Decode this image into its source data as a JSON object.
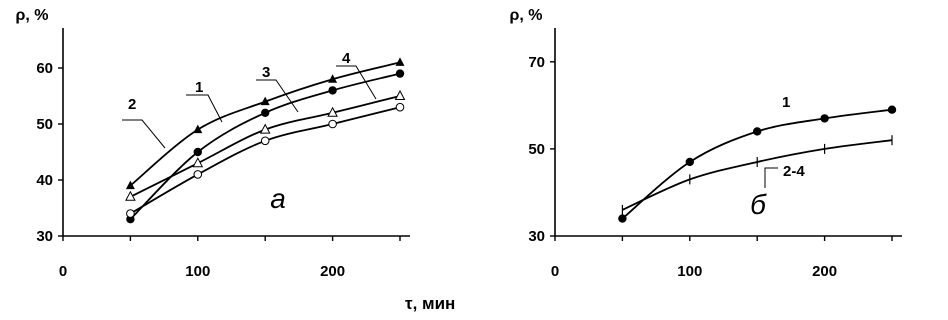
{
  "x_axis_label": "τ, мин",
  "chart_data": [
    {
      "type": "line",
      "panel_label": "а",
      "ylabel": "ρ, %",
      "xlabel": "τ, мин",
      "xlim": [
        0,
        250
      ],
      "ylim": [
        30,
        65
      ],
      "xticks": [
        0,
        100,
        200
      ],
      "yticks": [
        30,
        40,
        50,
        60
      ],
      "grid": false,
      "series": [
        {
          "name": "1",
          "marker": "filled-circle",
          "x": [
            50,
            100,
            150,
            200,
            250
          ],
          "y": [
            33,
            45,
            52,
            56,
            59
          ]
        },
        {
          "name": "2",
          "marker": "filled-triangle",
          "x": [
            50,
            100,
            150,
            200,
            250
          ],
          "y": [
            39,
            49,
            54,
            58,
            61
          ]
        },
        {
          "name": "3",
          "marker": "open-circle",
          "x": [
            50,
            100,
            150,
            200,
            250
          ],
          "y": [
            34,
            41,
            47,
            50,
            53
          ]
        },
        {
          "name": "4",
          "marker": "open-triangle",
          "x": [
            50,
            100,
            150,
            200,
            250
          ],
          "y": [
            37,
            43,
            49,
            52,
            55
          ]
        }
      ]
    },
    {
      "type": "line",
      "panel_label": "б",
      "ylabel": "ρ, %",
      "xlabel": "τ, мин",
      "xlim": [
        0,
        250
      ],
      "ylim": [
        30,
        75
      ],
      "xticks": [
        0,
        100,
        200
      ],
      "yticks": [
        30,
        50,
        70
      ],
      "grid": false,
      "series": [
        {
          "name": "1",
          "marker": "filled-circle",
          "x": [
            50,
            100,
            150,
            200,
            250
          ],
          "y": [
            34,
            47,
            54,
            57,
            59
          ]
        },
        {
          "name": "2-4",
          "marker": "plus",
          "x": [
            50,
            100,
            150,
            200,
            250
          ],
          "y": [
            36,
            43,
            47,
            50,
            52
          ]
        }
      ]
    }
  ]
}
